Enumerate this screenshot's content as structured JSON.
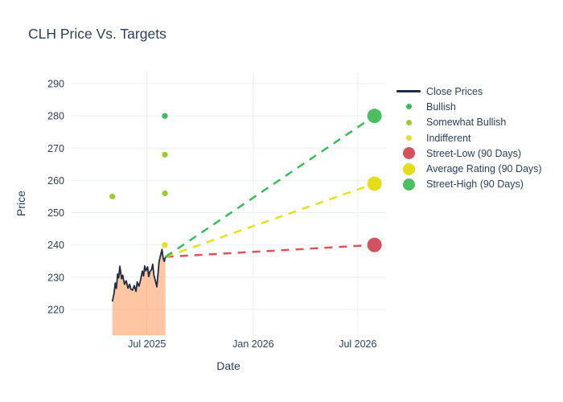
{
  "title": "CLH Price Vs. Targets",
  "colors": {
    "text": "#2a3f5f",
    "grid": "#e9eef6",
    "background": "#ffffff",
    "close_line": "#1f2c44",
    "close_fill": "rgba(253,146,78,0.52)",
    "bullish": "#3fba57",
    "somewhat_bullish": "#99cb2f",
    "indifferent": "#e6de22",
    "street_low": "#d25260",
    "average_rating": "#e3dd1c",
    "street_high": "#4dbf63"
  },
  "chart_data": {
    "type": "line",
    "title": "CLH Price Vs. Targets",
    "xlabel": "Date",
    "ylabel": "Price",
    "x_axis_range": [
      "2025-02-19",
      "2026-08-19"
    ],
    "y_axis_range": [
      212,
      293.5
    ],
    "x_ticks": [
      {
        "label": "Jul 2025",
        "date": "2025-07-01"
      },
      {
        "label": "Jan 2026",
        "date": "2026-01-01"
      },
      {
        "label": "Jul 2026",
        "date": "2026-07-01"
      }
    ],
    "y_ticks": [
      220,
      230,
      240,
      250,
      260,
      270,
      280,
      290
    ],
    "grid": true,
    "legend_position": "right",
    "series": [
      {
        "name": "Close Prices",
        "type": "line",
        "color": "#1f2c44",
        "fill": "tozeroy",
        "fill_color": "rgba(253,146,78,0.52)",
        "points": [
          [
            "2025-05-02",
            222.5
          ],
          [
            "2025-05-05",
            225.0
          ],
          [
            "2025-05-07",
            228.2
          ],
          [
            "2025-05-09",
            226.5
          ],
          [
            "2025-05-11",
            231.0
          ],
          [
            "2025-05-13",
            229.8
          ],
          [
            "2025-05-15",
            233.4
          ],
          [
            "2025-05-18",
            229.5
          ],
          [
            "2025-05-20",
            230.6
          ],
          [
            "2025-05-23",
            227.8
          ],
          [
            "2025-05-26",
            228.9
          ],
          [
            "2025-05-29",
            226.6
          ],
          [
            "2025-06-01",
            227.8
          ],
          [
            "2025-06-03",
            226.3
          ],
          [
            "2025-06-06",
            226.0
          ],
          [
            "2025-06-09",
            227.4
          ],
          [
            "2025-06-12",
            225.6
          ],
          [
            "2025-06-14",
            228.5
          ],
          [
            "2025-06-17",
            227.2
          ],
          [
            "2025-06-20",
            229.3
          ],
          [
            "2025-06-23",
            231.9
          ],
          [
            "2025-06-25",
            230.4
          ],
          [
            "2025-06-27",
            233.5
          ],
          [
            "2025-06-29",
            232.0
          ],
          [
            "2025-07-02",
            233.2
          ],
          [
            "2025-07-04",
            230.2
          ],
          [
            "2025-07-06",
            231.7
          ],
          [
            "2025-07-09",
            232.4
          ],
          [
            "2025-07-11",
            234.0
          ],
          [
            "2025-07-13",
            230.6
          ],
          [
            "2025-07-16",
            228.6
          ],
          [
            "2025-07-18",
            227.0
          ],
          [
            "2025-07-20",
            230.8
          ],
          [
            "2025-07-22",
            234.8
          ],
          [
            "2025-07-25",
            237.2
          ],
          [
            "2025-07-27",
            238.6
          ],
          [
            "2025-07-29",
            235.8
          ],
          [
            "2025-07-31",
            234.9
          ],
          [
            "2025-08-02",
            236.3
          ]
        ]
      },
      {
        "name": "Bullish",
        "type": "scatter",
        "color": "#3fba57",
        "points": [
          [
            "2025-08-01",
            280
          ]
        ]
      },
      {
        "name": "Somewhat Bullish",
        "type": "scatter",
        "color": "#99cb2f",
        "points": [
          [
            "2025-05-02",
            255
          ],
          [
            "2025-08-01",
            268
          ],
          [
            "2025-08-01",
            256
          ]
        ]
      },
      {
        "name": "Indifferent",
        "type": "scatter",
        "color": "#e6de22",
        "points": [
          [
            "2025-08-01",
            240
          ]
        ]
      },
      {
        "name": "Street-Low (90 Days)",
        "type": "target",
        "color": "#d25260",
        "dash_color": "#d9545f",
        "trend_from": [
          "2025-08-02",
          236.3
        ],
        "date": "2026-07-30",
        "value": 240
      },
      {
        "name": "Average Rating (90 Days)",
        "type": "target",
        "color": "#e3dd1c",
        "dash_color": "#e7e01c",
        "trend_from": [
          "2025-08-02",
          236.3
        ],
        "date": "2026-07-30",
        "value": 259
      },
      {
        "name": "Street-High (90 Days)",
        "type": "target",
        "color": "#4dbf63",
        "dash_color": "#3cbb5a",
        "trend_from": [
          "2025-08-02",
          236.3
        ],
        "date": "2026-07-30",
        "value": 280
      }
    ]
  },
  "legend": {
    "items": [
      {
        "label": "Close Prices",
        "marker": "line",
        "color": "#1f2c44"
      },
      {
        "label": "Bullish",
        "marker": "dot",
        "color": "#3fba57"
      },
      {
        "label": "Somewhat Bullish",
        "marker": "dot",
        "color": "#99cb2f"
      },
      {
        "label": "Indifferent",
        "marker": "dot",
        "color": "#e6de22"
      },
      {
        "label": "Street-Low (90 Days)",
        "marker": "bigdot",
        "color": "#d25260"
      },
      {
        "label": "Average Rating (90 Days)",
        "marker": "bigdot",
        "color": "#e3dd1c"
      },
      {
        "label": "Street-High (90 Days)",
        "marker": "bigdot",
        "color": "#4dbf63"
      }
    ]
  }
}
